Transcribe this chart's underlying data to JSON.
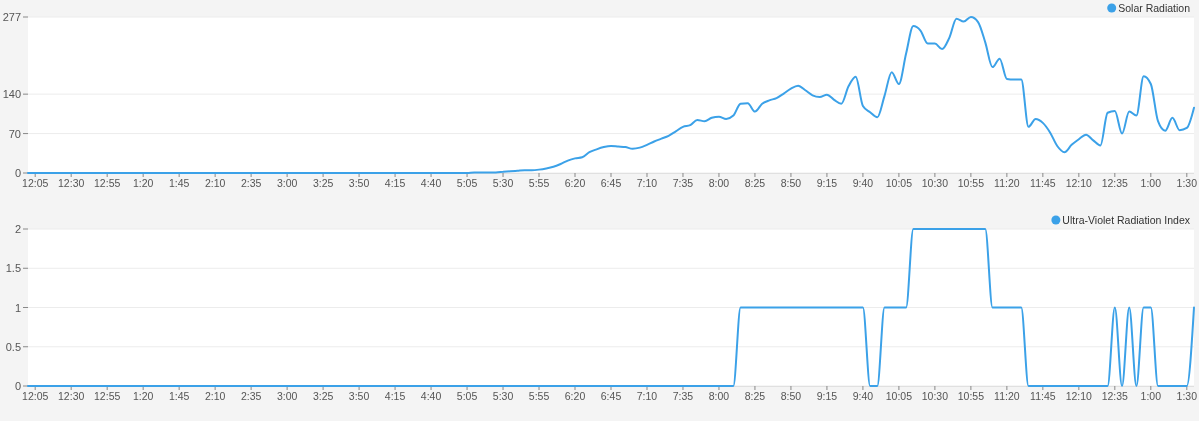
{
  "chart_data": [
    {
      "type": "line",
      "categories": [
        null,
        "12:05",
        null,
        null,
        null,
        null,
        "12:30",
        null,
        null,
        null,
        null,
        "12:55",
        null,
        null,
        null,
        null,
        "1:20",
        null,
        null,
        null,
        null,
        "1:45",
        null,
        null,
        null,
        null,
        "2:10",
        null,
        null,
        null,
        null,
        "2:35",
        null,
        null,
        null,
        null,
        "3:00",
        null,
        null,
        null,
        null,
        "3:25",
        null,
        null,
        null,
        null,
        "3:50",
        null,
        null,
        null,
        null,
        "4:15",
        null,
        null,
        null,
        null,
        "4:40",
        null,
        null,
        null,
        null,
        "5:05",
        null,
        null,
        null,
        null,
        "5:30",
        null,
        null,
        null,
        null,
        "5:55",
        null,
        null,
        null,
        null,
        "6:20",
        null,
        null,
        null,
        null,
        "6:45",
        null,
        null,
        null,
        null,
        "7:10",
        null,
        null,
        null,
        null,
        "7:35",
        null,
        null,
        null,
        null,
        "8:00",
        null,
        null,
        null,
        null,
        "8:25",
        null,
        null,
        null,
        null,
        "8:50",
        null,
        null,
        null,
        null,
        "9:15",
        null,
        null,
        null,
        null,
        "9:40",
        null,
        null,
        null,
        null,
        "10:05",
        null,
        null,
        null,
        null,
        "10:30",
        null,
        null,
        null,
        null,
        "10:55",
        null,
        null,
        null,
        null,
        "11:20",
        null,
        null,
        null,
        null,
        "11:45",
        null,
        null,
        null,
        null,
        "12:10",
        null,
        null,
        null,
        null,
        "12:35",
        null,
        null,
        null,
        null,
        "1:00",
        null,
        null,
        null,
        null,
        "1:30",
        null
      ],
      "series": [
        {
          "name": "Solar Radiation",
          "color": "#3ba1e8",
          "values": [
            0,
            0,
            0,
            0,
            0,
            0,
            0,
            0,
            0,
            0,
            0,
            0,
            0,
            0,
            0,
            0,
            0,
            0,
            0,
            0,
            0,
            0,
            0,
            0,
            0,
            0,
            0,
            0,
            0,
            0,
            0,
            0,
            0,
            0,
            0,
            0,
            0,
            0,
            0,
            0,
            0,
            0,
            0,
            0,
            0,
            0,
            0,
            0,
            0,
            0,
            0,
            0,
            0,
            0,
            0,
            0,
            0,
            0,
            0,
            0,
            0,
            0,
            1,
            1,
            1,
            1,
            2,
            3,
            4,
            5,
            5,
            6,
            8,
            11,
            16,
            22,
            26,
            28,
            37,
            42,
            46,
            48,
            47,
            46,
            43,
            45,
            50,
            56,
            61,
            66,
            74,
            82,
            85,
            94,
            92,
            98,
            100,
            96,
            102,
            123,
            124,
            109,
            123,
            129,
            133,
            141,
            150,
            155,
            147,
            138,
            135,
            139,
            130,
            123,
            154,
            171,
            119,
            108,
            99,
            137,
            179,
            158,
            212,
            261,
            253,
            230,
            230,
            220,
            240,
            274,
            269,
            277,
            268,
            232,
            188,
            203,
            167,
            166,
            166,
            82,
            96,
            89,
            72,
            48,
            37,
            50,
            60,
            68,
            58,
            49,
            107,
            110,
            70,
            109,
            102,
            172,
            158,
            92,
            75,
            98,
            76,
            80,
            116
          ]
        }
      ],
      "ylim": [
        0,
        277
      ],
      "yticks": [
        0,
        70,
        140,
        277
      ],
      "grid": "y",
      "legend": "top right"
    },
    {
      "type": "line",
      "categories": [
        null,
        "12:05",
        null,
        null,
        null,
        null,
        "12:30",
        null,
        null,
        null,
        null,
        "12:55",
        null,
        null,
        null,
        null,
        "1:20",
        null,
        null,
        null,
        null,
        "1:45",
        null,
        null,
        null,
        null,
        "2:10",
        null,
        null,
        null,
        null,
        "2:35",
        null,
        null,
        null,
        null,
        "3:00",
        null,
        null,
        null,
        null,
        "3:25",
        null,
        null,
        null,
        null,
        "3:50",
        null,
        null,
        null,
        null,
        "4:15",
        null,
        null,
        null,
        null,
        "4:40",
        null,
        null,
        null,
        null,
        "5:05",
        null,
        null,
        null,
        null,
        "5:30",
        null,
        null,
        null,
        null,
        "5:55",
        null,
        null,
        null,
        null,
        "6:20",
        null,
        null,
        null,
        null,
        "6:45",
        null,
        null,
        null,
        null,
        "7:10",
        null,
        null,
        null,
        null,
        "7:35",
        null,
        null,
        null,
        null,
        "8:00",
        null,
        null,
        null,
        null,
        "8:25",
        null,
        null,
        null,
        null,
        "8:50",
        null,
        null,
        null,
        null,
        "9:15",
        null,
        null,
        null,
        null,
        "9:40",
        null,
        null,
        null,
        null,
        "10:05",
        null,
        null,
        null,
        null,
        "10:30",
        null,
        null,
        null,
        null,
        "10:55",
        null,
        null,
        null,
        null,
        "11:20",
        null,
        null,
        null,
        null,
        "11:45",
        null,
        null,
        null,
        null,
        "12:10",
        null,
        null,
        null,
        null,
        "12:35",
        null,
        null,
        null,
        null,
        "1:00",
        null,
        null,
        null,
        null,
        "1:30",
        null
      ],
      "series": [
        {
          "name": "Ultra-Violet Radiation Index",
          "color": "#3ba1e8",
          "values": [
            0,
            0,
            0,
            0,
            0,
            0,
            0,
            0,
            0,
            0,
            0,
            0,
            0,
            0,
            0,
            0,
            0,
            0,
            0,
            0,
            0,
            0,
            0,
            0,
            0,
            0,
            0,
            0,
            0,
            0,
            0,
            0,
            0,
            0,
            0,
            0,
            0,
            0,
            0,
            0,
            0,
            0,
            0,
            0,
            0,
            0,
            0,
            0,
            0,
            0,
            0,
            0,
            0,
            0,
            0,
            0,
            0,
            0,
            0,
            0,
            0,
            0,
            0,
            0,
            0,
            0,
            0,
            0,
            0,
            0,
            0,
            0,
            0,
            0,
            0,
            0,
            0,
            0,
            0,
            0,
            0,
            0,
            0,
            0,
            0,
            0,
            0,
            0,
            0,
            0,
            0,
            0,
            0,
            0,
            0,
            0,
            0,
            0,
            0,
            1,
            1,
            1,
            1,
            1,
            1,
            1,
            1,
            1,
            1,
            1,
            1,
            1,
            1,
            1,
            1,
            1,
            1,
            0,
            0,
            1,
            1,
            1,
            1,
            2,
            2,
            2,
            2,
            2,
            2,
            2,
            2,
            2,
            2,
            2,
            1,
            1,
            1,
            1,
            1,
            0,
            0,
            0,
            0,
            0,
            0,
            0,
            0,
            0,
            0,
            0,
            0,
            1,
            0,
            1,
            0,
            1,
            1,
            0,
            0,
            0,
            0,
            0,
            1
          ]
        }
      ],
      "ylim": [
        0,
        2
      ],
      "yticks": [
        0,
        0.5,
        1,
        1.5,
        2
      ],
      "grid": "y",
      "legend": "top right"
    }
  ]
}
